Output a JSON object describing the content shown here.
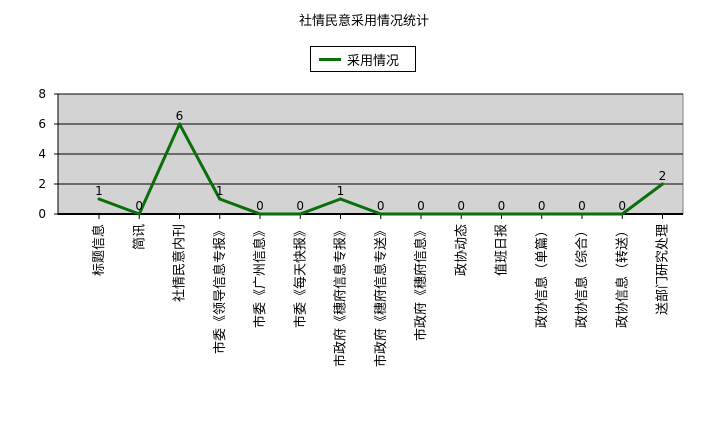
{
  "chart_data": {
    "type": "line",
    "title": "社情民意采用情况统计",
    "legend": {
      "entries": [
        "采用情况"
      ],
      "placement": "top-center"
    },
    "categories": [
      "标题信息",
      "简讯",
      "社情民意内刊",
      "市委《领导信息专报》",
      "市委《广州信息》",
      "市委《每天快报》",
      "市政府《穗府信息专报》",
      "市政府《穗府信息专送》",
      "市政府《穗府信息》",
      "政协动态",
      "值班日报",
      "政协信息（单篇）",
      "政协信息（综合）",
      "政协信息（转送）",
      "送部门研究处理"
    ],
    "series": [
      {
        "name": "采用情况",
        "values": [
          1,
          0,
          6,
          1,
          0,
          0,
          1,
          0,
          0,
          0,
          0,
          0,
          0,
          0,
          2
        ]
      }
    ],
    "ylim": [
      0,
      8
    ],
    "yticks": [
      0,
      2,
      4,
      6,
      8
    ],
    "grid": true,
    "colors": {
      "line": "#0a6e0a",
      "plot_bg": "#d3d3d3"
    }
  }
}
